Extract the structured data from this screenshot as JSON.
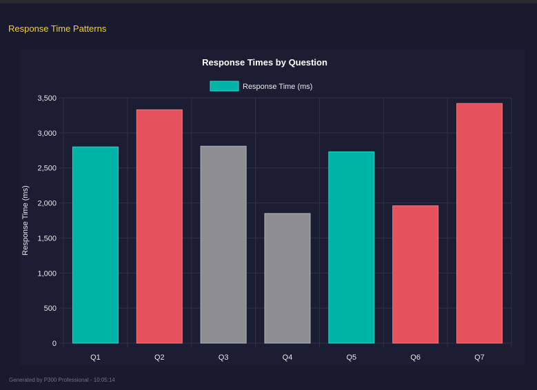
{
  "section_title": "Response Time Patterns",
  "footer": "Generated by P300 Professional - 10:05:14",
  "chart_data": {
    "type": "bar",
    "title": "Response Times by Question",
    "legend": {
      "label": "Response Time (ms)",
      "placement": "top",
      "color": "#00b3a7"
    },
    "ylabel": "Response Time (ms)",
    "xlabel": "",
    "ylim": [
      0,
      3500
    ],
    "yticks": [
      0,
      500,
      1000,
      1500,
      2000,
      2500,
      3000,
      3500
    ],
    "ytick_labels": [
      "0",
      "500",
      "1,000",
      "1,500",
      "2,000",
      "2,500",
      "3,000",
      "3,500"
    ],
    "grid": true,
    "categories": [
      "Q1",
      "Q2",
      "Q3",
      "Q4",
      "Q5",
      "Q6",
      "Q7"
    ],
    "values": [
      2800,
      3330,
      2810,
      1850,
      2730,
      1960,
      3420
    ],
    "bar_colors": [
      "#00b3a7",
      "#e5525e",
      "#8e8d92",
      "#8e8d92",
      "#00b3a7",
      "#e5525e",
      "#e5525e"
    ]
  }
}
